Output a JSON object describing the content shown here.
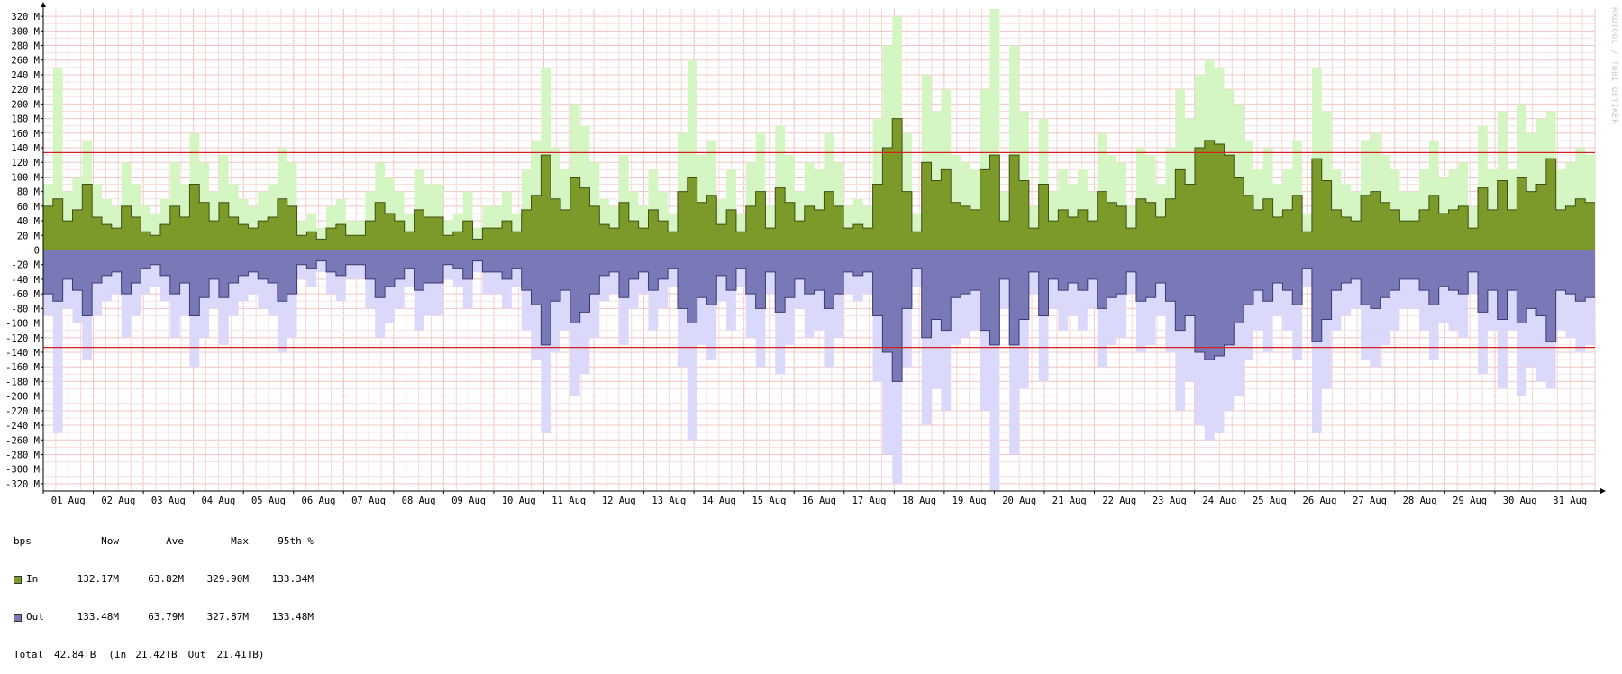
{
  "watermark": "RRDTOOL / TOBI OETIKER",
  "chart_data": {
    "type": "area",
    "title": "",
    "unit": "bps",
    "ylim": [
      -330,
      330
    ],
    "yticks": [
      320,
      300,
      280,
      260,
      240,
      220,
      200,
      180,
      160,
      140,
      120,
      100,
      80,
      60,
      40,
      20,
      0,
      -20,
      -40,
      -60,
      -80,
      -100,
      -120,
      -140,
      -160,
      -180,
      -200,
      -220,
      -240,
      -260,
      -280,
      -300,
      -320
    ],
    "ytick_labels": [
      "320 M",
      "300 M",
      "280 M",
      "260 M",
      "240 M",
      "220 M",
      "200 M",
      "180 M",
      "160 M",
      "140 M",
      "120 M",
      "100 M",
      "80 M",
      "60 M",
      "40 M",
      "20 M",
      "0",
      "-20 M",
      "-40 M",
      "-60 M",
      "-80 M",
      "-100 M",
      "-120 M",
      "-140 M",
      "-160 M",
      "-180 M",
      "-200 M",
      "-220 M",
      "-240 M",
      "-260 M",
      "-280 M",
      "-300 M",
      "-320 M"
    ],
    "categories": [
      "01 Aug",
      "02 Aug",
      "03 Aug",
      "04 Aug",
      "05 Aug",
      "06 Aug",
      "07 Aug",
      "08 Aug",
      "09 Aug",
      "10 Aug",
      "11 Aug",
      "12 Aug",
      "13 Aug",
      "14 Aug",
      "15 Aug",
      "16 Aug",
      "17 Aug",
      "18 Aug",
      "19 Aug",
      "20 Aug",
      "21 Aug",
      "22 Aug",
      "23 Aug",
      "24 Aug",
      "25 Aug",
      "26 Aug",
      "27 Aug",
      "28 Aug",
      "29 Aug",
      "30 Aug",
      "31 Aug"
    ],
    "grid": true,
    "percentile_95_line": 133.4,
    "series": [
      {
        "name": "In",
        "color": "#7c9a2a",
        "max_color": "#d2f5c0",
        "avg": [
          60,
          70,
          40,
          55,
          90,
          45,
          35,
          30,
          60,
          45,
          25,
          20,
          35,
          60,
          45,
          90,
          65,
          40,
          65,
          45,
          35,
          30,
          40,
          45,
          70,
          60,
          20,
          25,
          15,
          30,
          35,
          20,
          20,
          40,
          65,
          50,
          40,
          25,
          55,
          45,
          45,
          20,
          25,
          40,
          15,
          30,
          30,
          40,
          25,
          55,
          75,
          130,
          70,
          55,
          100,
          85,
          60,
          35,
          30,
          65,
          40,
          30,
          55,
          40,
          25,
          80,
          100,
          65,
          75,
          35,
          55,
          25,
          60,
          80,
          30,
          85,
          65,
          40,
          60,
          55,
          80,
          60,
          30,
          35,
          30,
          90,
          140,
          180,
          80,
          25,
          120,
          95,
          110,
          65,
          60,
          55,
          110,
          130,
          40,
          130,
          95,
          30,
          90,
          40,
          55,
          45,
          55,
          40,
          80,
          65,
          60,
          30,
          70,
          65,
          45,
          70,
          110,
          90,
          140,
          150,
          145,
          130,
          100,
          75,
          55,
          70,
          45,
          55,
          75,
          25,
          125,
          95,
          55,
          45,
          40,
          75,
          80,
          65,
          55,
          40,
          40,
          55,
          75,
          50,
          55,
          60,
          30,
          85,
          55,
          95,
          55,
          100,
          80,
          90,
          125,
          55,
          60,
          70,
          65
        ],
        "max": [
          90,
          250,
          80,
          100,
          150,
          90,
          70,
          60,
          120,
          90,
          60,
          50,
          70,
          120,
          90,
          160,
          120,
          80,
          130,
          90,
          70,
          60,
          80,
          90,
          140,
          120,
          40,
          50,
          30,
          60,
          70,
          40,
          40,
          80,
          120,
          100,
          80,
          50,
          110,
          90,
          90,
          40,
          50,
          80,
          30,
          60,
          60,
          80,
          50,
          110,
          150,
          250,
          140,
          110,
          200,
          170,
          120,
          70,
          60,
          130,
          80,
          60,
          110,
          80,
          50,
          160,
          260,
          130,
          150,
          70,
          110,
          50,
          120,
          160,
          60,
          170,
          130,
          80,
          120,
          110,
          160,
          120,
          60,
          70,
          60,
          180,
          280,
          320,
          160,
          50,
          240,
          190,
          220,
          130,
          120,
          110,
          220,
          330,
          80,
          280,
          190,
          60,
          180,
          80,
          110,
          90,
          110,
          80,
          160,
          130,
          120,
          60,
          140,
          130,
          90,
          140,
          220,
          180,
          240,
          260,
          250,
          220,
          200,
          150,
          110,
          140,
          90,
          110,
          150,
          50,
          250,
          190,
          110,
          90,
          80,
          150,
          160,
          130,
          110,
          80,
          80,
          110,
          150,
          100,
          110,
          120,
          60,
          170,
          110,
          190,
          110,
          200,
          160,
          180,
          190,
          110,
          120,
          140,
          130
        ],
        "stats": {
          "now": "132.17M",
          "ave": "63.82M",
          "max": "329.90M",
          "p95": "133.34M"
        }
      },
      {
        "name": "Out",
        "color": "#7a79b8",
        "max_color": "#d9d7fb",
        "avg": [
          60,
          70,
          40,
          55,
          90,
          45,
          35,
          30,
          60,
          45,
          25,
          20,
          35,
          60,
          45,
          90,
          65,
          40,
          65,
          45,
          35,
          30,
          40,
          45,
          70,
          60,
          20,
          25,
          15,
          30,
          35,
          20,
          20,
          40,
          65,
          50,
          40,
          25,
          55,
          45,
          45,
          20,
          25,
          40,
          15,
          30,
          30,
          40,
          25,
          55,
          75,
          130,
          70,
          55,
          100,
          85,
          60,
          35,
          30,
          65,
          40,
          30,
          55,
          40,
          25,
          80,
          100,
          65,
          75,
          35,
          55,
          25,
          60,
          80,
          30,
          85,
          65,
          40,
          60,
          55,
          80,
          60,
          30,
          35,
          30,
          90,
          140,
          180,
          80,
          25,
          120,
          95,
          110,
          65,
          60,
          55,
          110,
          130,
          40,
          130,
          95,
          30,
          90,
          40,
          55,
          45,
          55,
          40,
          80,
          65,
          60,
          30,
          70,
          65,
          45,
          70,
          110,
          90,
          140,
          150,
          145,
          130,
          100,
          75,
          55,
          70,
          45,
          55,
          75,
          25,
          125,
          95,
          55,
          45,
          40,
          75,
          80,
          65,
          55,
          40,
          40,
          55,
          75,
          50,
          55,
          60,
          30,
          85,
          55,
          95,
          55,
          100,
          80,
          90,
          125,
          55,
          60,
          70,
          65
        ],
        "max": [
          90,
          250,
          80,
          100,
          150,
          90,
          70,
          60,
          120,
          90,
          60,
          50,
          70,
          120,
          90,
          160,
          120,
          80,
          130,
          90,
          70,
          60,
          80,
          90,
          140,
          120,
          40,
          50,
          30,
          60,
          70,
          40,
          40,
          80,
          120,
          100,
          80,
          50,
          110,
          90,
          90,
          40,
          50,
          80,
          30,
          60,
          60,
          80,
          50,
          110,
          150,
          250,
          140,
          110,
          200,
          170,
          120,
          70,
          60,
          130,
          80,
          60,
          110,
          80,
          50,
          160,
          260,
          130,
          150,
          70,
          110,
          50,
          120,
          160,
          60,
          170,
          130,
          80,
          120,
          110,
          160,
          120,
          60,
          70,
          60,
          180,
          280,
          320,
          160,
          50,
          240,
          190,
          220,
          130,
          120,
          110,
          220,
          330,
          80,
          280,
          190,
          60,
          180,
          80,
          110,
          90,
          110,
          80,
          160,
          130,
          120,
          60,
          140,
          130,
          90,
          140,
          220,
          180,
          240,
          260,
          250,
          220,
          200,
          150,
          110,
          140,
          90,
          110,
          150,
          50,
          250,
          190,
          110,
          90,
          80,
          150,
          160,
          130,
          110,
          80,
          80,
          110,
          150,
          100,
          110,
          120,
          60,
          170,
          110,
          190,
          110,
          200,
          160,
          180,
          190,
          110,
          120,
          140,
          130
        ],
        "stats": {
          "now": "133.48M",
          "ave": "63.79M",
          "max": "327.87M",
          "p95": "133.48M"
        }
      }
    ]
  },
  "legend": {
    "header": {
      "unit": "bps",
      "now": "Now",
      "ave": "Ave",
      "max": "Max",
      "p95": "95th %"
    },
    "rows": [
      {
        "label": "In",
        "now": "132.17M",
        "ave": "63.82M",
        "max": "329.90M",
        "p95": "133.34M",
        "color": "#7c9a2a"
      },
      {
        "label": "Out",
        "now": "133.48M",
        "ave": "63.79M",
        "max": "327.87M",
        "p95": "133.48M",
        "color": "#7a79b8"
      }
    ],
    "total": {
      "label": "Total",
      "value": "42.84TB",
      "in_label": "(In",
      "in_value": "21.42TB",
      "out_label": "Out",
      "out_value": "21.41TB)"
    }
  }
}
